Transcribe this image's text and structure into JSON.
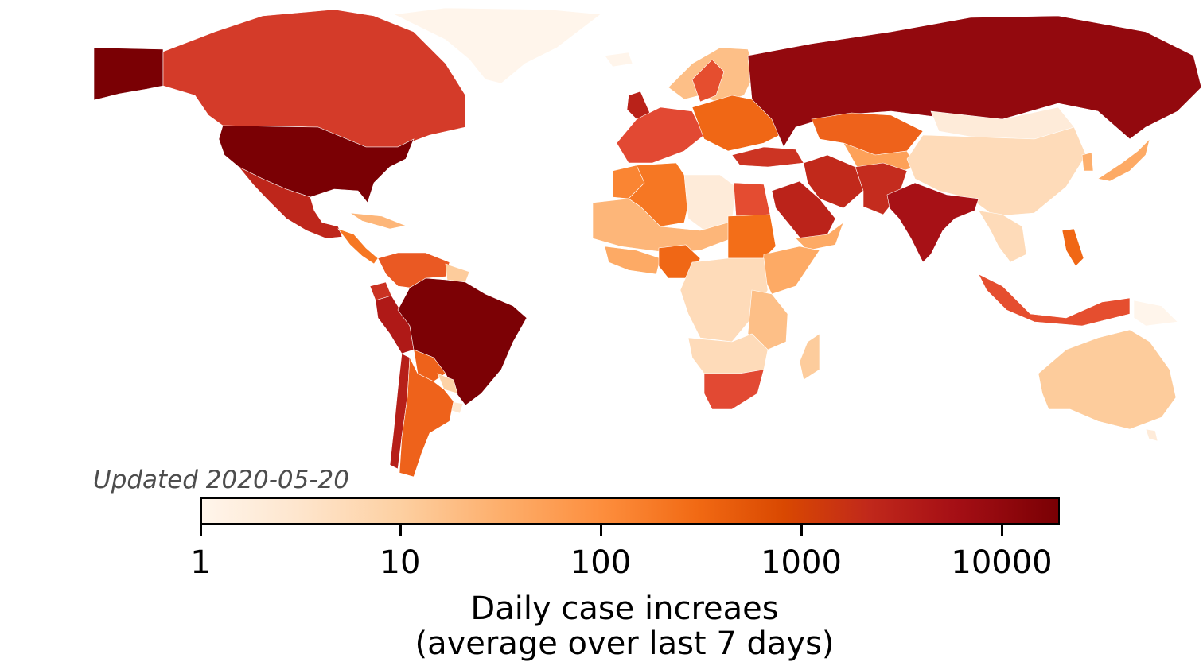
{
  "updated_label": "Updated 2020-05-20",
  "colorbar": {
    "scale": "log",
    "range": [
      1,
      18000
    ],
    "ticks": [
      "1",
      "10",
      "100",
      "1000",
      "10000"
    ],
    "title_line1": "Daily case increaes",
    "title_line2": "(average over last 7 days)",
    "colors": [
      "#fff5eb",
      "#fee6ce",
      "#fdd0a2",
      "#fdae6b",
      "#fd8d3c",
      "#f16913",
      "#e34a33",
      "#c0281b",
      "#a50f15",
      "#7a0004"
    ]
  },
  "regions": [
    {
      "name": "Alaska (USA)",
      "value": 20000
    },
    {
      "name": "Canada",
      "value": 1100
    },
    {
      "name": "Greenland",
      "value": 1
    },
    {
      "name": "United States",
      "value": 22000
    },
    {
      "name": "Mexico",
      "value": 2200
    },
    {
      "name": "Central America",
      "value": 150
    },
    {
      "name": "Caribbean",
      "value": 20
    },
    {
      "name": "Colombia & Venezuela",
      "value": 400
    },
    {
      "name": "Guyana region",
      "value": 10
    },
    {
      "name": "Peru",
      "value": 4000
    },
    {
      "name": "Ecuador",
      "value": 1500
    },
    {
      "name": "Brazil",
      "value": 17000
    },
    {
      "name": "Bolivia",
      "value": 300
    },
    {
      "name": "Paraguay",
      "value": 8
    },
    {
      "name": "Uruguay",
      "value": 3
    },
    {
      "name": "Argentina",
      "value": 300
    },
    {
      "name": "Chile",
      "value": 3000
    },
    {
      "name": "Iceland",
      "value": 1
    },
    {
      "name": "Norway & Finland",
      "value": 15
    },
    {
      "name": "Sweden",
      "value": 600
    },
    {
      "name": "United Kingdom",
      "value": 2700
    },
    {
      "name": "Western Europe",
      "value": 700
    },
    {
      "name": "Eastern Europe",
      "value": 250
    },
    {
      "name": "Russia",
      "value": 9500
    },
    {
      "name": "Kazakhstan",
      "value": 300
    },
    {
      "name": "Central Asia",
      "value": 40
    },
    {
      "name": "Turkey",
      "value": 1400
    },
    {
      "name": "Iran",
      "value": 2000
    },
    {
      "name": "Saudi Arabia",
      "value": 2500
    },
    {
      "name": "Arabian Peninsula South",
      "value": 30
    },
    {
      "name": "Pakistan & Afghanistan",
      "value": 1800
    },
    {
      "name": "India",
      "value": 5500
    },
    {
      "name": "China",
      "value": 5
    },
    {
      "name": "Mongolia",
      "value": 2
    },
    {
      "name": "Japan",
      "value": 30
    },
    {
      "name": "Korea",
      "value": 25
    },
    {
      "name": "Southeast Asia",
      "value": 5
    },
    {
      "name": "Philippines",
      "value": 250
    },
    {
      "name": "Indonesia",
      "value": 600
    },
    {
      "name": "Papua New Guinea",
      "value": 1
    },
    {
      "name": "Australia",
      "value": 10
    },
    {
      "name": "New Zealand",
      "value": 2
    },
    {
      "name": "North Africa (Algeria)",
      "value": 150
    },
    {
      "name": "Morocco",
      "value": 100
    },
    {
      "name": "Libya",
      "value": 2
    },
    {
      "name": "Egypt",
      "value": 650
    },
    {
      "name": "Sahel",
      "value": 20
    },
    {
      "name": "West Africa coast",
      "value": 30
    },
    {
      "name": "Nigeria",
      "value": 250
    },
    {
      "name": "Sudan",
      "value": 200
    },
    {
      "name": "Ethiopia & Horn",
      "value": 30
    },
    {
      "name": "Central Africa",
      "value": 5
    },
    {
      "name": "East Africa",
      "value": 15
    },
    {
      "name": "Southern Africa middle",
      "value": 5
    },
    {
      "name": "South Africa",
      "value": 700
    },
    {
      "name": "Madagascar",
      "value": 10
    }
  ]
}
